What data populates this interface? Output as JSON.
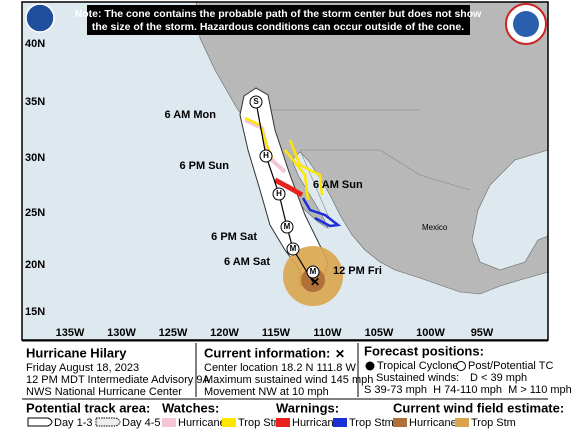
{
  "note": {
    "line1": "Note: The cone contains the probable path of the storm center but does not show",
    "line2": "the size of the storm. Hazardous conditions can occur outside of the cone."
  },
  "map": {
    "lat_labels": [
      "40N",
      "35N",
      "30N",
      "25N",
      "20N",
      "15N"
    ],
    "lon_labels": [
      "135W",
      "130W",
      "125W",
      "120W",
      "115W",
      "110W",
      "105W",
      "100W",
      "95W"
    ],
    "country": "Mexico",
    "track": [
      {
        "time": "12 PM Fri",
        "intensity": "M"
      },
      {
        "time": "6 AM Sat",
        "intensity": "M"
      },
      {
        "time": "6 PM Sat",
        "intensity": "M"
      },
      {
        "time": "6 AM Sun",
        "intensity": "H"
      },
      {
        "time": "6 PM Sun",
        "intensity": "H"
      },
      {
        "time": "6 AM Mon",
        "intensity": "S"
      }
    ]
  },
  "storm": {
    "name": "Hurricane Hilary",
    "date": "Friday August 18, 2023",
    "advisory": "12 PM MDT Intermediate Advisory 9A",
    "center": "NWS National Hurricane Center"
  },
  "current": {
    "heading": "Current information:",
    "location": "Center location 18.2 N 111.8 W",
    "wind": "Maximum sustained wind 145 mph",
    "movement": "Movement NW at 10 mph"
  },
  "forecast": {
    "heading": "Forecast positions:",
    "tropical": "Tropical Cyclone",
    "post": "Post/Potential TC",
    "winds": "Sustained winds:",
    "d": "D < 39 mph",
    "scale": "S 39-73 mph  H 74-110 mph  M > 110 mph"
  },
  "legend": {
    "track_area": "Potential track area:",
    "day13": "Day 1-3",
    "day45": "Day 4-5",
    "watches": {
      "heading": "Watches:",
      "hurricane": "Hurricane",
      "trop": "Trop Stm"
    },
    "warnings": {
      "heading": "Warnings:",
      "hurricane": "Hurricane",
      "trop": "Trop Stm"
    },
    "wind": {
      "heading": "Current wind field estimate:",
      "hurricane": "Hurricane",
      "trop": "Trop Stm"
    }
  }
}
